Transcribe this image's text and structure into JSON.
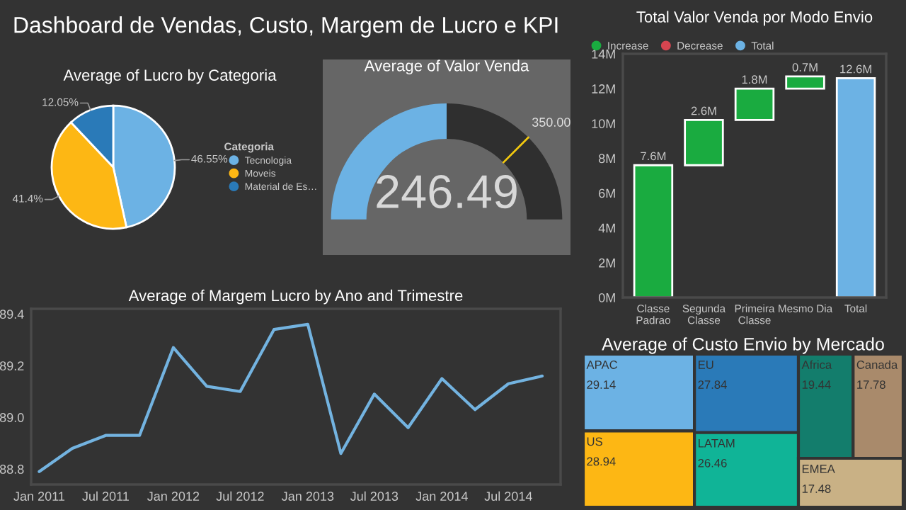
{
  "chart_data": [
    {
      "type": "other",
      "title": "Dashboard de Vendas, Custo, Margem de Lucro e KPI"
    },
    {
      "type": "pie",
      "title": "Average of Lucro by Categoria",
      "categories": [
        "Tecnologia",
        "Moveis",
        "Material de Es…"
      ],
      "values": [
        46.55,
        41.4,
        12.05
      ],
      "colors": [
        "#6cb2e4",
        "#fdb714",
        "#2a7ab8"
      ],
      "value_labels": [
        "46.55%",
        "41.4%",
        "12.05%"
      ],
      "legend_title": "Categoria",
      "legend": "right"
    },
    {
      "type": "donut",
      "title": "Average of Valor Venda",
      "categories": [
        null,
        null
      ],
      "values": [
        50,
        50
      ],
      "colors": [
        "#6cb2e4",
        "#2f2f2f"
      ],
      "annotations": [
        "246.49",
        "350.00"
      ]
    },
    {
      "type": "bar",
      "title": "Total Valor Venda por Modo Envio",
      "categories": [
        "Classe\nPadrao",
        "Segunda\nClasse",
        "Primeira\nClasse",
        "Mesmo Dia",
        "Total"
      ],
      "legend": "top left",
      "series": [
        {
          "name": "Increase",
          "color": "#1aab40",
          "values": [
            7.6,
            2.6,
            1.8,
            0.7,
            null
          ],
          "base": [
            0,
            7.6,
            10.2,
            12.0,
            null
          ],
          "value_labels": [
            "7.6M",
            "2.6M",
            "1.8M",
            "0.7M",
            null
          ]
        },
        {
          "name": "Decrease",
          "color": "#d64550",
          "values": [
            null,
            null,
            null,
            null,
            null
          ]
        },
        {
          "name": "Total",
          "color": "#6cb2e4",
          "values": [
            null,
            null,
            null,
            null,
            12.6
          ],
          "base": [
            null,
            null,
            null,
            null,
            0
          ],
          "value_labels": [
            null,
            null,
            null,
            null,
            "12.6M"
          ]
        }
      ],
      "ylim": [
        0,
        14
      ],
      "yticks": [
        {
          "value": 0,
          "label": "0M"
        },
        {
          "value": 2,
          "label": "2M"
        },
        {
          "value": 4,
          "label": "4M"
        },
        {
          "value": 6,
          "label": "6M"
        },
        {
          "value": 8,
          "label": "8M"
        },
        {
          "value": 10,
          "label": "10M"
        },
        {
          "value": 12,
          "label": "12M"
        },
        {
          "value": 14,
          "label": "14M"
        }
      ]
    },
    {
      "type": "line",
      "title": "Average of Margem Lucro by Ano and Trimestre",
      "x": [
        "2011-01",
        "2011-04",
        "2011-07",
        "2011-10",
        "2012-01",
        "2012-04",
        "2012-07",
        "2012-10",
        "2013-01",
        "2013-04",
        "2013-07",
        "2013-10",
        "2014-01",
        "2014-04",
        "2014-07",
        "2014-10"
      ],
      "series": [
        {
          "color": "#73b3e0",
          "values": [
            88.79,
            88.88,
            88.93,
            88.93,
            89.27,
            89.12,
            89.1,
            89.34,
            89.36,
            88.86,
            89.09,
            88.96,
            89.15,
            89.03,
            89.13,
            89.16
          ]
        }
      ],
      "xlim": [
        "2010-12-10",
        "2014-11-20"
      ],
      "xticks": [
        {
          "value": "2011-01",
          "label": "Jan 2011"
        },
        {
          "value": "2011-07",
          "label": "Jul 2011"
        },
        {
          "value": "2012-01",
          "label": "Jan 2012"
        },
        {
          "value": "2012-07",
          "label": "Jul 2012"
        },
        {
          "value": "2013-01",
          "label": "Jan 2013"
        },
        {
          "value": "2013-07",
          "label": "Jul 2013"
        },
        {
          "value": "2014-01",
          "label": "Jan 2014"
        },
        {
          "value": "2014-07",
          "label": "Jul 2014"
        }
      ],
      "ylim": [
        88.74,
        89.42
      ],
      "yticks": [
        88.8,
        {
          "value": 89,
          "label": "89.0"
        },
        89.2,
        89.4
      ],
      "line_style": "solid"
    },
    {
      "type": "other",
      "title": "Average of Custo Envio by Mercado",
      "categories": [
        "APAC",
        "US",
        "EU",
        "LATAM",
        "Africa",
        "Canada",
        "EMEA"
      ],
      "values": [
        29.14,
        28.94,
        27.84,
        26.46,
        19.44,
        17.78,
        17.48
      ],
      "colors": [
        "#6cb2e4",
        "#fdb714",
        "#2a7ab8",
        "#10b497",
        "#137d6c",
        "#a98a6b",
        "#c9b185"
      ],
      "data_labels": true
    }
  ]
}
